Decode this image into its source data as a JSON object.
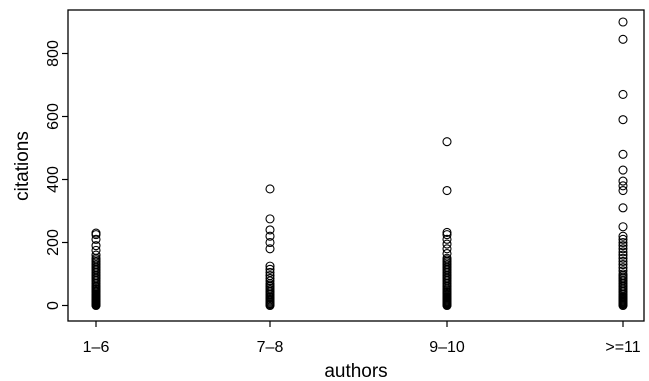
{
  "chart_data": {
    "type": "scatter",
    "title": "",
    "xlabel": "authors",
    "ylabel": "citations",
    "categories": [
      "1–6",
      "7–8",
      "9–10",
      ">=11"
    ],
    "yticks": [
      0,
      200,
      400,
      600,
      800
    ],
    "ylim": [
      -40,
      920
    ],
    "grid": false,
    "legend": "none",
    "marker": "open-circle",
    "series": [
      {
        "category": "1–6",
        "values": [
          0,
          2,
          4,
          6,
          8,
          10,
          12,
          14,
          16,
          18,
          20,
          22,
          25,
          28,
          30,
          33,
          36,
          40,
          44,
          48,
          52,
          56,
          60,
          65,
          70,
          75,
          80,
          85,
          90,
          95,
          100,
          105,
          110,
          115,
          120,
          125,
          130,
          135,
          140,
          145,
          150,
          160,
          175,
          190,
          210,
          225,
          230
        ]
      },
      {
        "category": "7–8",
        "values": [
          0,
          3,
          6,
          10,
          14,
          18,
          22,
          26,
          30,
          35,
          40,
          45,
          50,
          55,
          60,
          65,
          70,
          78,
          86,
          95,
          105,
          115,
          125,
          180,
          200,
          220,
          240,
          275,
          370
        ]
      },
      {
        "category": "9–10",
        "values": [
          0,
          2,
          4,
          6,
          8,
          10,
          12,
          15,
          18,
          21,
          24,
          27,
          30,
          34,
          38,
          42,
          46,
          50,
          55,
          60,
          65,
          70,
          75,
          80,
          85,
          90,
          95,
          100,
          105,
          110,
          115,
          120,
          125,
          130,
          135,
          140,
          145,
          150,
          165,
          180,
          195,
          210,
          225,
          232,
          365,
          520
        ]
      },
      {
        "category": ">=11",
        "values": [
          0,
          3,
          6,
          9,
          12,
          15,
          18,
          21,
          24,
          27,
          30,
          35,
          40,
          45,
          50,
          55,
          60,
          65,
          70,
          75,
          80,
          85,
          90,
          95,
          100,
          110,
          120,
          130,
          140,
          150,
          160,
          170,
          180,
          190,
          200,
          210,
          220,
          250,
          310,
          365,
          380,
          395,
          430,
          480,
          590,
          670,
          845,
          900
        ]
      }
    ]
  }
}
